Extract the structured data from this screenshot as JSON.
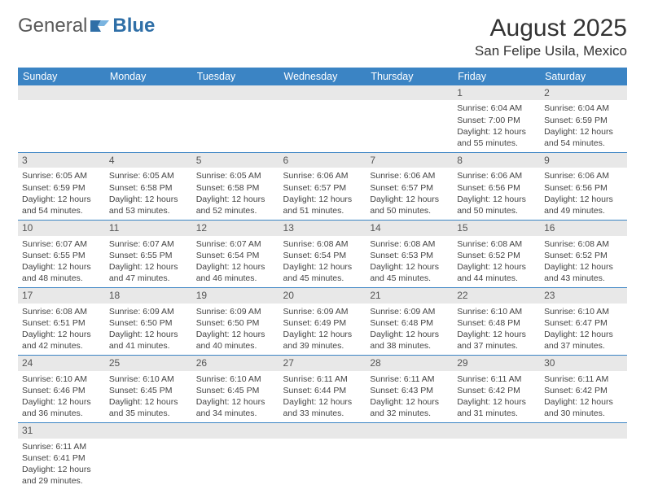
{
  "logo": {
    "part1": "General",
    "part2": "Blue"
  },
  "title": "August 2025",
  "location": "San Felipe Usila, Mexico",
  "colors": {
    "header_bg": "#3b84c4",
    "header_text": "#ffffff",
    "daynum_bg": "#e8e8e8",
    "row_divider": "#3b84c4",
    "logo_blue": "#2f6fa7"
  },
  "weekdays": [
    "Sunday",
    "Monday",
    "Tuesday",
    "Wednesday",
    "Thursday",
    "Friday",
    "Saturday"
  ],
  "weeks": [
    [
      {
        "n": "",
        "sr": "",
        "ss": "",
        "dl": ""
      },
      {
        "n": "",
        "sr": "",
        "ss": "",
        "dl": ""
      },
      {
        "n": "",
        "sr": "",
        "ss": "",
        "dl": ""
      },
      {
        "n": "",
        "sr": "",
        "ss": "",
        "dl": ""
      },
      {
        "n": "",
        "sr": "",
        "ss": "",
        "dl": ""
      },
      {
        "n": "1",
        "sr": "Sunrise: 6:04 AM",
        "ss": "Sunset: 7:00 PM",
        "dl": "Daylight: 12 hours and 55 minutes."
      },
      {
        "n": "2",
        "sr": "Sunrise: 6:04 AM",
        "ss": "Sunset: 6:59 PM",
        "dl": "Daylight: 12 hours and 54 minutes."
      }
    ],
    [
      {
        "n": "3",
        "sr": "Sunrise: 6:05 AM",
        "ss": "Sunset: 6:59 PM",
        "dl": "Daylight: 12 hours and 54 minutes."
      },
      {
        "n": "4",
        "sr": "Sunrise: 6:05 AM",
        "ss": "Sunset: 6:58 PM",
        "dl": "Daylight: 12 hours and 53 minutes."
      },
      {
        "n": "5",
        "sr": "Sunrise: 6:05 AM",
        "ss": "Sunset: 6:58 PM",
        "dl": "Daylight: 12 hours and 52 minutes."
      },
      {
        "n": "6",
        "sr": "Sunrise: 6:06 AM",
        "ss": "Sunset: 6:57 PM",
        "dl": "Daylight: 12 hours and 51 minutes."
      },
      {
        "n": "7",
        "sr": "Sunrise: 6:06 AM",
        "ss": "Sunset: 6:57 PM",
        "dl": "Daylight: 12 hours and 50 minutes."
      },
      {
        "n": "8",
        "sr": "Sunrise: 6:06 AM",
        "ss": "Sunset: 6:56 PM",
        "dl": "Daylight: 12 hours and 50 minutes."
      },
      {
        "n": "9",
        "sr": "Sunrise: 6:06 AM",
        "ss": "Sunset: 6:56 PM",
        "dl": "Daylight: 12 hours and 49 minutes."
      }
    ],
    [
      {
        "n": "10",
        "sr": "Sunrise: 6:07 AM",
        "ss": "Sunset: 6:55 PM",
        "dl": "Daylight: 12 hours and 48 minutes."
      },
      {
        "n": "11",
        "sr": "Sunrise: 6:07 AM",
        "ss": "Sunset: 6:55 PM",
        "dl": "Daylight: 12 hours and 47 minutes."
      },
      {
        "n": "12",
        "sr": "Sunrise: 6:07 AM",
        "ss": "Sunset: 6:54 PM",
        "dl": "Daylight: 12 hours and 46 minutes."
      },
      {
        "n": "13",
        "sr": "Sunrise: 6:08 AM",
        "ss": "Sunset: 6:54 PM",
        "dl": "Daylight: 12 hours and 45 minutes."
      },
      {
        "n": "14",
        "sr": "Sunrise: 6:08 AM",
        "ss": "Sunset: 6:53 PM",
        "dl": "Daylight: 12 hours and 45 minutes."
      },
      {
        "n": "15",
        "sr": "Sunrise: 6:08 AM",
        "ss": "Sunset: 6:52 PM",
        "dl": "Daylight: 12 hours and 44 minutes."
      },
      {
        "n": "16",
        "sr": "Sunrise: 6:08 AM",
        "ss": "Sunset: 6:52 PM",
        "dl": "Daylight: 12 hours and 43 minutes."
      }
    ],
    [
      {
        "n": "17",
        "sr": "Sunrise: 6:08 AM",
        "ss": "Sunset: 6:51 PM",
        "dl": "Daylight: 12 hours and 42 minutes."
      },
      {
        "n": "18",
        "sr": "Sunrise: 6:09 AM",
        "ss": "Sunset: 6:50 PM",
        "dl": "Daylight: 12 hours and 41 minutes."
      },
      {
        "n": "19",
        "sr": "Sunrise: 6:09 AM",
        "ss": "Sunset: 6:50 PM",
        "dl": "Daylight: 12 hours and 40 minutes."
      },
      {
        "n": "20",
        "sr": "Sunrise: 6:09 AM",
        "ss": "Sunset: 6:49 PM",
        "dl": "Daylight: 12 hours and 39 minutes."
      },
      {
        "n": "21",
        "sr": "Sunrise: 6:09 AM",
        "ss": "Sunset: 6:48 PM",
        "dl": "Daylight: 12 hours and 38 minutes."
      },
      {
        "n": "22",
        "sr": "Sunrise: 6:10 AM",
        "ss": "Sunset: 6:48 PM",
        "dl": "Daylight: 12 hours and 37 minutes."
      },
      {
        "n": "23",
        "sr": "Sunrise: 6:10 AM",
        "ss": "Sunset: 6:47 PM",
        "dl": "Daylight: 12 hours and 37 minutes."
      }
    ],
    [
      {
        "n": "24",
        "sr": "Sunrise: 6:10 AM",
        "ss": "Sunset: 6:46 PM",
        "dl": "Daylight: 12 hours and 36 minutes."
      },
      {
        "n": "25",
        "sr": "Sunrise: 6:10 AM",
        "ss": "Sunset: 6:45 PM",
        "dl": "Daylight: 12 hours and 35 minutes."
      },
      {
        "n": "26",
        "sr": "Sunrise: 6:10 AM",
        "ss": "Sunset: 6:45 PM",
        "dl": "Daylight: 12 hours and 34 minutes."
      },
      {
        "n": "27",
        "sr": "Sunrise: 6:11 AM",
        "ss": "Sunset: 6:44 PM",
        "dl": "Daylight: 12 hours and 33 minutes."
      },
      {
        "n": "28",
        "sr": "Sunrise: 6:11 AM",
        "ss": "Sunset: 6:43 PM",
        "dl": "Daylight: 12 hours and 32 minutes."
      },
      {
        "n": "29",
        "sr": "Sunrise: 6:11 AM",
        "ss": "Sunset: 6:42 PM",
        "dl": "Daylight: 12 hours and 31 minutes."
      },
      {
        "n": "30",
        "sr": "Sunrise: 6:11 AM",
        "ss": "Sunset: 6:42 PM",
        "dl": "Daylight: 12 hours and 30 minutes."
      }
    ],
    [
      {
        "n": "31",
        "sr": "Sunrise: 6:11 AM",
        "ss": "Sunset: 6:41 PM",
        "dl": "Daylight: 12 hours and 29 minutes."
      },
      {
        "n": "",
        "sr": "",
        "ss": "",
        "dl": ""
      },
      {
        "n": "",
        "sr": "",
        "ss": "",
        "dl": ""
      },
      {
        "n": "",
        "sr": "",
        "ss": "",
        "dl": ""
      },
      {
        "n": "",
        "sr": "",
        "ss": "",
        "dl": ""
      },
      {
        "n": "",
        "sr": "",
        "ss": "",
        "dl": ""
      },
      {
        "n": "",
        "sr": "",
        "ss": "",
        "dl": ""
      }
    ]
  ]
}
